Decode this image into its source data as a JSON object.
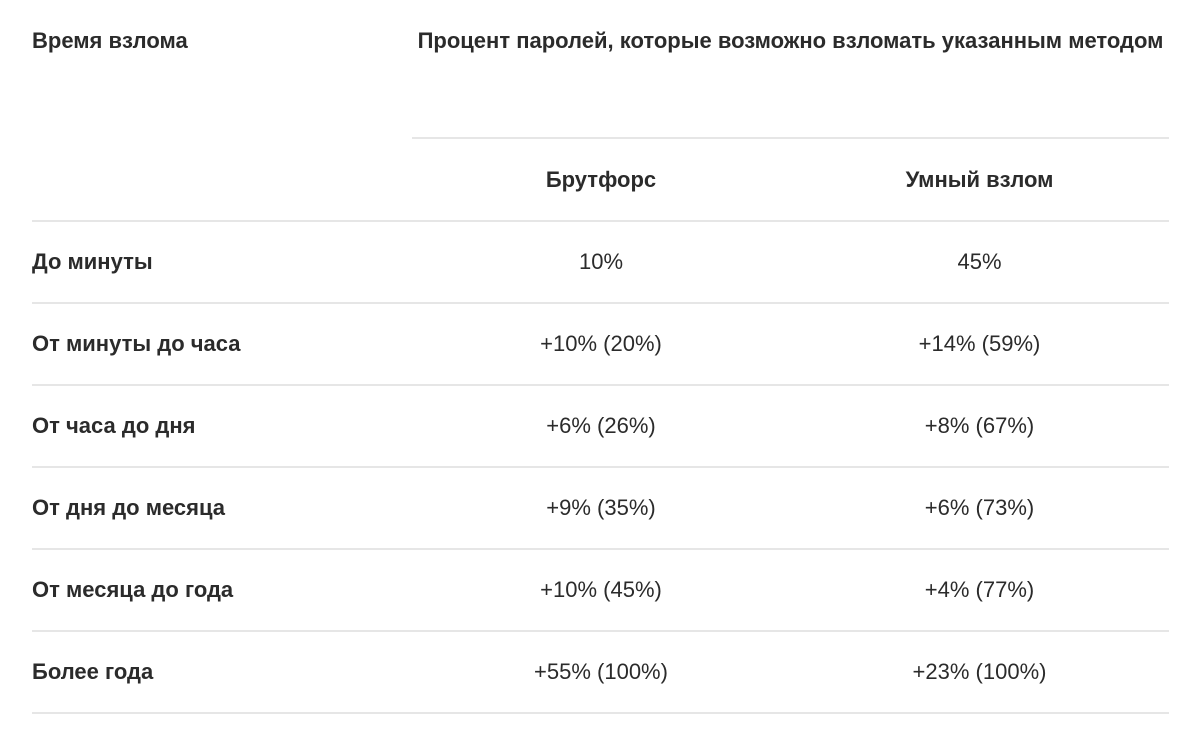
{
  "table": {
    "header": {
      "time_label": "Время взлома",
      "group_label": "Процент паролей, которые возможно взломать указанным методом",
      "columns": [
        "Брутфорс",
        "Умный взлом"
      ]
    },
    "rows": [
      {
        "period": "До минуты",
        "bruteforce": "10%",
        "smart": "45%"
      },
      {
        "period": "От минуты до часа",
        "bruteforce": "+10% (20%)",
        "smart": "+14% (59%)"
      },
      {
        "period": "От часа до дня",
        "bruteforce": "+6% (26%)",
        "smart": "+8% (67%)"
      },
      {
        "period": "От дня до месяца",
        "bruteforce": "+9% (35%)",
        "smart": "+6% (73%)"
      },
      {
        "period": "От месяца до года",
        "bruteforce": "+10% (45%)",
        "smart": "+4% (77%)"
      },
      {
        "period": "Более года",
        "bruteforce": "+55% (100%)",
        "smart": "+23% (100%)"
      }
    ]
  }
}
